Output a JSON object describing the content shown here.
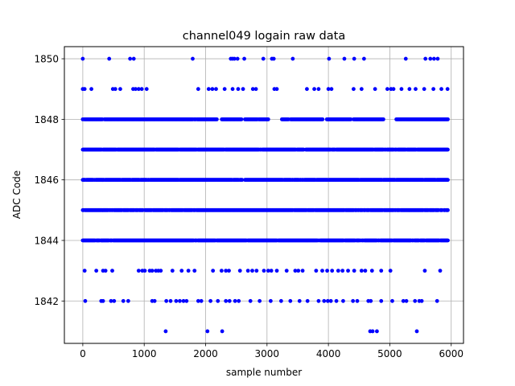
{
  "chart_data": {
    "type": "scatter",
    "title": "channel049 logain raw data",
    "xlabel": "sample number",
    "ylabel": "ADC Code",
    "xlim": [
      -300,
      6200
    ],
    "ylim": [
      1840.6,
      1850.4
    ],
    "xticks": [
      0,
      1000,
      2000,
      3000,
      4000,
      5000,
      6000
    ],
    "yticks": [
      1842,
      1844,
      1846,
      1848,
      1850
    ],
    "grid": true,
    "marker_color": "#0000ff",
    "n_samples": 5950,
    "series": [
      {
        "dense_levels": [
          1844,
          1845,
          1846,
          1847
        ],
        "semi_dense_levels": [
          1848
        ],
        "sparse_points": {
          "1850": [
            0,
            430,
            770,
            830,
            1790,
            2410,
            2440,
            2470,
            2520,
            2630,
            2940,
            3080,
            3110,
            3420,
            4010,
            4260,
            4420,
            4580,
            5260,
            5580,
            5660,
            5720,
            5780
          ],
          "1849": [
            0,
            30,
            140,
            490,
            530,
            610,
            820,
            860,
            910,
            960,
            1040,
            1880,
            2050,
            2110,
            2170,
            2310,
            2440,
            2530,
            2610,
            2770,
            2820,
            3120,
            3160,
            3650,
            3770,
            3840,
            4000,
            4050,
            4410,
            4540,
            4760,
            4960,
            5020,
            5060,
            5190,
            5320,
            5420,
            5560,
            5710,
            5840,
            5940
          ],
          "1843": [
            30,
            220,
            330,
            370,
            480,
            910,
            970,
            1010,
            1090,
            1130,
            1190,
            1230,
            1270,
            1460,
            1610,
            1720,
            1820,
            2120,
            2260,
            2330,
            2380,
            2560,
            2690,
            2760,
            2830,
            2950,
            3020,
            3070,
            3160,
            3320,
            3460,
            3510,
            3580,
            3800,
            3900,
            3980,
            4060,
            4160,
            4230,
            4320,
            4420,
            4540,
            4600,
            4710,
            4860,
            5010,
            5570,
            5820
          ],
          "1842": [
            40,
            300,
            330,
            460,
            510,
            660,
            740,
            1130,
            1170,
            1360,
            1430,
            1520,
            1580,
            1640,
            1690,
            1880,
            1930,
            2080,
            2200,
            2330,
            2390,
            2480,
            2540,
            2730,
            2880,
            3060,
            3230,
            3380,
            3530,
            3660,
            3840,
            3930,
            3990,
            4040,
            4130,
            4240,
            4400,
            4470,
            4650,
            4690,
            4860,
            5040,
            5220,
            5270,
            5410,
            5480,
            5520,
            5770
          ],
          "1841": [
            1350,
            2030,
            2270,
            4680,
            4720,
            4790,
            5440
          ]
        }
      }
    ]
  }
}
